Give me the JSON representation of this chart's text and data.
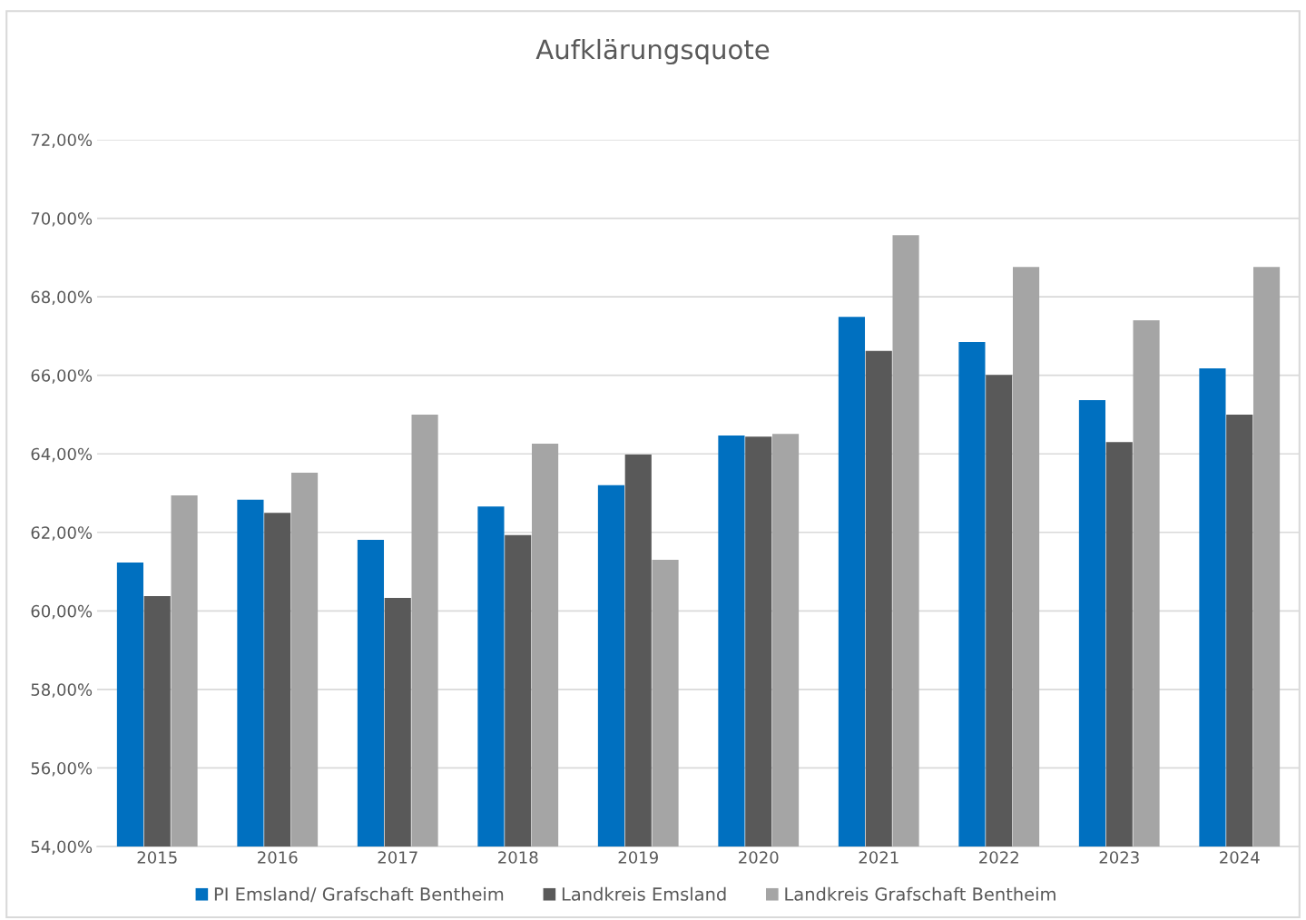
{
  "chart_data": {
    "type": "bar",
    "title": "Aufklärungsquote",
    "categories": [
      "2015",
      "2016",
      "2017",
      "2018",
      "2019",
      "2020",
      "2021",
      "2022",
      "2023",
      "2024"
    ],
    "series": [
      {
        "name": "PI Emsland/ Grafschaft Bentheim",
        "color": "#0070c0",
        "values": [
          61.23,
          62.83,
          61.81,
          62.66,
          63.2,
          64.47,
          67.49,
          66.85,
          65.37,
          66.18
        ]
      },
      {
        "name": "Landkreis Emsland",
        "color": "#595959",
        "values": [
          60.38,
          62.5,
          60.33,
          61.93,
          63.98,
          64.44,
          66.62,
          66.01,
          64.3,
          65.0
        ]
      },
      {
        "name": "Landkreis Grafschaft Bentheim",
        "color": "#a5a5a5",
        "values": [
          62.94,
          63.52,
          65.0,
          64.26,
          61.3,
          64.51,
          69.57,
          68.76,
          67.4,
          68.76
        ]
      }
    ],
    "ylim": [
      54,
      72
    ],
    "yticks": [
      {
        "value": 54,
        "label": "54,00%"
      },
      {
        "value": 56,
        "label": "56,00%"
      },
      {
        "value": 58,
        "label": "58,00%"
      },
      {
        "value": 60,
        "label": "60,00%"
      },
      {
        "value": 62,
        "label": "62,00%"
      },
      {
        "value": 64,
        "label": "64,00%"
      },
      {
        "value": 66,
        "label": "66,00%"
      },
      {
        "value": 68,
        "label": "68,00%"
      },
      {
        "value": 70,
        "label": "70,00%"
      },
      {
        "value": 72,
        "label": "72,00%"
      }
    ],
    "grid": "y",
    "legend": "bottom"
  }
}
